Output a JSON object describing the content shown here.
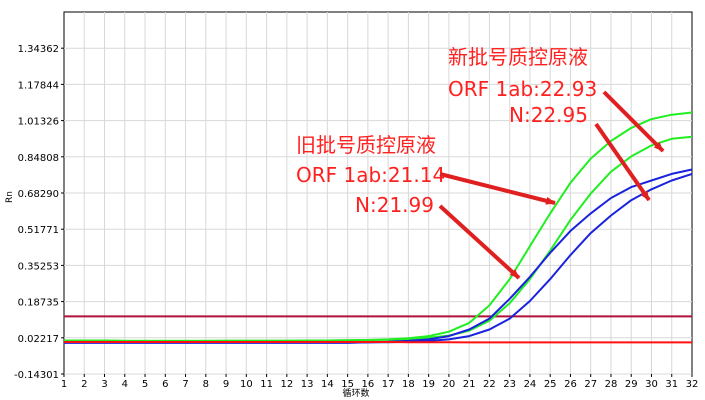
{
  "chart_data": {
    "type": "line",
    "title": "",
    "xlabel": "循环数",
    "ylabel": "Rn",
    "x": [
      1,
      2,
      3,
      4,
      5,
      6,
      7,
      8,
      9,
      10,
      11,
      12,
      13,
      14,
      15,
      16,
      17,
      18,
      19,
      20,
      21,
      22,
      23,
      24,
      25,
      26,
      27,
      28,
      29,
      30,
      31,
      32
    ],
    "xlim": [
      1,
      32
    ],
    "ylim": [
      -0.14301,
      1.5088
    ],
    "y_ticks": [
      -0.14301,
      0.02217,
      0.18735,
      0.35253,
      0.51771,
      0.6829,
      0.84808,
      1.01326,
      1.17844,
      1.34362
    ],
    "y_tick_labels": [
      "-0.14301",
      "0.02217",
      "0.18735",
      "0.35253",
      "0.51771",
      "0.68290",
      "0.84808",
      "1.01326",
      "1.17844",
      "1.34362"
    ],
    "grid": true,
    "series": [
      {
        "color": "#22ee22",
        "values": [
          0.01,
          0.01,
          0.01,
          0.008,
          0.008,
          0.008,
          0.008,
          0.008,
          0.009,
          0.009,
          0.009,
          0.009,
          0.01,
          0.01,
          0.011,
          0.012,
          0.015,
          0.02,
          0.03,
          0.05,
          0.09,
          0.17,
          0.29,
          0.44,
          0.59,
          0.73,
          0.84,
          0.92,
          0.98,
          1.02,
          1.04,
          1.05
        ]
      },
      {
        "color": "#22ee22",
        "values": [
          0.01,
          0.01,
          0.01,
          0.008,
          0.008,
          0.008,
          0.008,
          0.008,
          0.009,
          0.009,
          0.009,
          0.009,
          0.01,
          0.01,
          0.011,
          0.012,
          0.013,
          0.016,
          0.022,
          0.032,
          0.055,
          0.1,
          0.18,
          0.29,
          0.42,
          0.56,
          0.68,
          0.78,
          0.85,
          0.9,
          0.93,
          0.94
        ]
      },
      {
        "color": "#1a22dd",
        "values": [
          0.0,
          0.0,
          0.0,
          0.0,
          0.0,
          0.0,
          0.0,
          0.0,
          0.0,
          0.0,
          0.0,
          0.0,
          0.0,
          0.0,
          0.0,
          0.002,
          0.004,
          0.008,
          0.015,
          0.03,
          0.06,
          0.11,
          0.2,
          0.3,
          0.41,
          0.51,
          0.59,
          0.66,
          0.71,
          0.74,
          0.77,
          0.79
        ]
      },
      {
        "color": "#1a22dd",
        "values": [
          0.0,
          0.0,
          0.0,
          0.0,
          0.0,
          0.0,
          0.0,
          0.0,
          0.0,
          0.0,
          0.0,
          0.0,
          0.0,
          0.0,
          0.0,
          0.001,
          0.002,
          0.004,
          0.008,
          0.015,
          0.03,
          0.06,
          0.11,
          0.19,
          0.29,
          0.4,
          0.5,
          0.58,
          0.65,
          0.7,
          0.74,
          0.77
        ]
      },
      {
        "color": "#ff1010",
        "values": [
          0.003,
          0.003,
          0.003,
          0.003,
          0.003,
          0.003,
          0.003,
          0.003,
          0.003,
          0.003,
          0.003,
          0.003,
          0.003,
          0.003,
          0.003,
          0.003,
          0.003,
          0.002,
          0.002,
          0.002,
          0.001,
          0.001,
          0.001,
          0.001,
          0.001,
          0.001,
          0.001,
          0.001,
          0.001,
          0.001,
          0.001,
          0.001
        ]
      }
    ],
    "threshold": {
      "value": 0.12,
      "color": "#b0103a"
    },
    "annotations": {
      "new_line1": "新批号质控原液",
      "new_line2": "ORF 1ab:22.93",
      "new_line3": "N:22.95",
      "old_line1": "旧批号质控原液",
      "old_line2": "ORF 1ab:21.14",
      "old_line3": "N:21.99",
      "color": "#ff2020"
    }
  }
}
